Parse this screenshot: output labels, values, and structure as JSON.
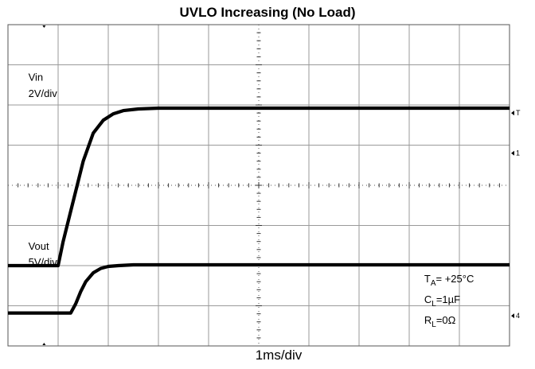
{
  "chart_data": {
    "type": "line",
    "title": "UVLO Increasing (No Load)",
    "xlabel": "1ms/div",
    "x_divisions": 10,
    "y_divisions": 8,
    "grid": true,
    "series": [
      {
        "name": "Vin",
        "scale": "2V/div",
        "x_div": [
          0,
          1.0,
          1.1,
          1.3,
          1.5,
          1.7,
          1.9,
          2.1,
          2.3,
          2.6,
          3.0,
          4.0,
          10.0
        ],
        "y_div": [
          2.0,
          2.0,
          2.6,
          3.6,
          4.6,
          5.3,
          5.62,
          5.78,
          5.86,
          5.9,
          5.92,
          5.92,
          5.92
        ]
      },
      {
        "name": "Vout",
        "scale": "5V/div",
        "x_div": [
          0,
          1.25,
          1.35,
          1.45,
          1.55,
          1.7,
          1.85,
          2.0,
          2.2,
          2.5,
          3.0,
          10.0
        ],
        "y_div": [
          0.82,
          0.82,
          1.05,
          1.35,
          1.6,
          1.82,
          1.93,
          1.98,
          2.0,
          2.02,
          2.02,
          2.02
        ]
      }
    ],
    "labels": [
      {
        "text": "Vin",
        "x_div": 0.2,
        "y_div": 6.6
      },
      {
        "text": "2V/div",
        "x_div": 0.2,
        "y_div": 6.2
      },
      {
        "text": "Vout",
        "x_div": 0.2,
        "y_div": 2.4
      },
      {
        "text": "5V/div",
        "x_div": 0.2,
        "y_div": 2.0
      }
    ],
    "conditions": [
      {
        "main": "T",
        "sub": "A",
        "rest": "= +25°C"
      },
      {
        "main": "C",
        "sub": "L",
        "rest": "=1µF"
      },
      {
        "main": "R",
        "sub": "L",
        "rest": "=0Ω"
      }
    ],
    "channel_markers": [
      "T",
      "1",
      "4"
    ]
  }
}
